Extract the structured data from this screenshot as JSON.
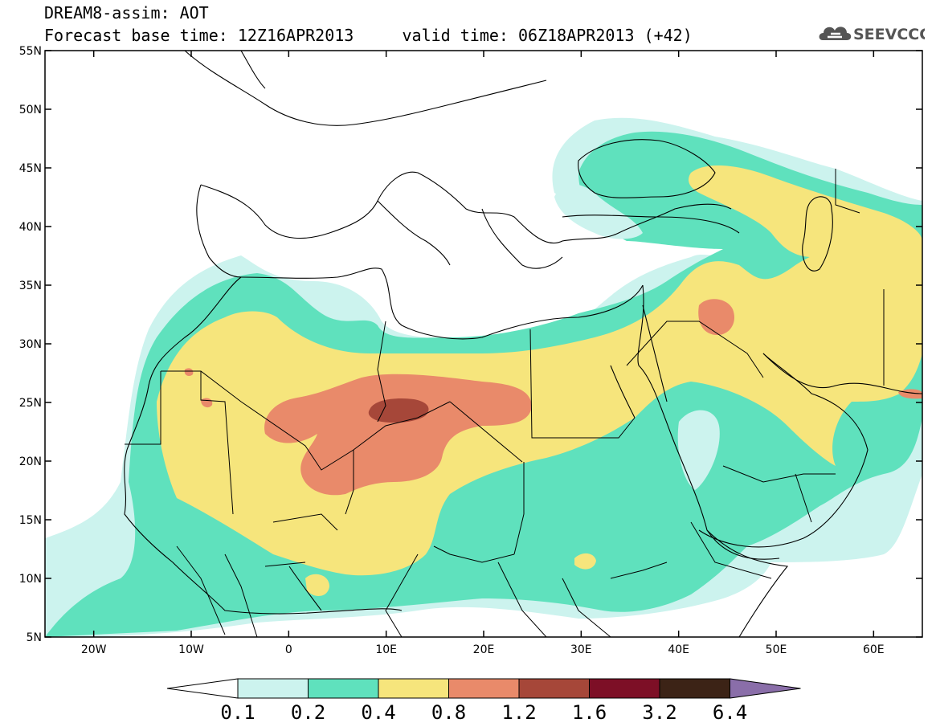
{
  "header": {
    "line1": "DREAM8-assim: AOT",
    "line2": "Forecast base time: 12Z16APR2013     valid time: 06Z18APR2013 (+42)",
    "logo_text": "SEEVCCC"
  },
  "map": {
    "lon_range": [
      -25,
      65
    ],
    "lat_range": [
      5,
      55
    ],
    "lat_ticks": [
      "55N",
      "50N",
      "45N",
      "40N",
      "35N",
      "30N",
      "25N",
      "20N",
      "15N",
      "10N",
      "5N"
    ],
    "lon_ticks": [
      "20W",
      "10W",
      "0",
      "10E",
      "20E",
      "30E",
      "40E",
      "50E",
      "60E"
    ],
    "colors": {
      "c01": "#ccf3ee",
      "c02": "#5fe1bd",
      "c04": "#f6e57c",
      "c08": "#e98a6a",
      "c12": "#a64739",
      "c16": "#7d0f26",
      "c32": "#3c2316",
      "c64": "#8a6ea9"
    }
  },
  "colorbar": {
    "labels": [
      "0.1",
      "0.2",
      "0.4",
      "0.8",
      "1.2",
      "1.6",
      "3.2",
      "6.4"
    ]
  }
}
